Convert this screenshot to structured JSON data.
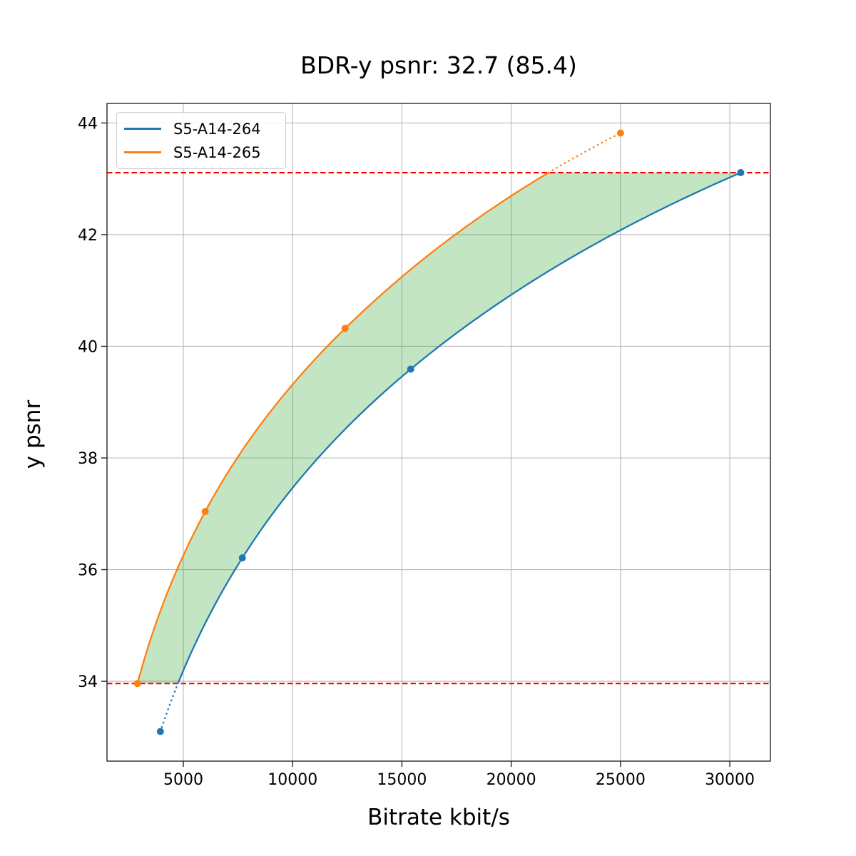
{
  "title": "BDR-y psnr: 32.7 (85.4)",
  "chart_data": {
    "type": "line",
    "title": "BDR-y psnr: 32.7 (85.4)",
    "xlabel": "Bitrate kbit/s",
    "ylabel": "y psnr",
    "xlim": [
      1508,
      31858
    ],
    "ylim": [
      32.57,
      44.35
    ],
    "xticks": [
      5000,
      10000,
      15000,
      20000,
      25000,
      30000
    ],
    "yticks": [
      34,
      36,
      38,
      40,
      42,
      44
    ],
    "grid": true,
    "grid_color": "#b8b8b8",
    "spine_color": "#262626",
    "legend_position": "upper left",
    "series": [
      {
        "name": "S5-A14-264",
        "color": "#1f77b4",
        "x": [
          3950,
          7700,
          15400,
          30500
        ],
        "y": [
          33.1,
          36.21,
          39.59,
          43.11
        ]
      },
      {
        "name": "S5-A14-265",
        "color": "#ff7f0e",
        "x": [
          2900,
          6000,
          12400,
          25000
        ],
        "y": [
          33.96,
          37.04,
          40.32,
          43.82
        ]
      }
    ],
    "overlap_lines": {
      "color": "#ff0000",
      "lower": 33.96,
      "upper": 43.11
    },
    "fill_color": "#2ca02c",
    "fill_opacity": 0.28,
    "interpolation": "pchip-log-x",
    "bd_rate_label": "32.7",
    "bd_rate_pct_label": "85.4"
  }
}
